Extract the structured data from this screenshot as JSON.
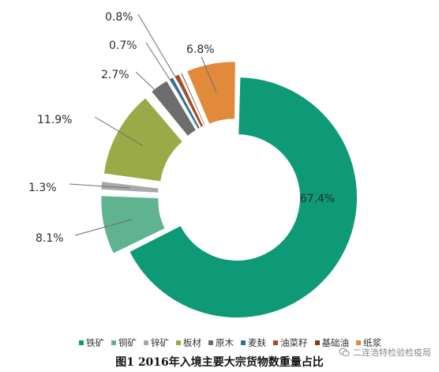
{
  "chart_data": {
    "type": "donut",
    "title": "",
    "categories": [
      "铁矿",
      "铜矿",
      "锌矿",
      "板材",
      "原木",
      "麦麸",
      "油菜籽",
      "基础油",
      "纸浆"
    ],
    "values": [
      67.4,
      8.1,
      1.3,
      11.9,
      2.7,
      0.7,
      0.8,
      0,
      6.8
    ],
    "labels": [
      "67.4%",
      "8.1%",
      "1.3%",
      "11.9%",
      "2.7%",
      "0.7%",
      "0.8%",
      "",
      "6.8%"
    ],
    "colors": [
      "#0f9a77",
      "#5fb38f",
      "#a9a9a9",
      "#9aaa47",
      "#6d6d6d",
      "#2f6f9f",
      "#a84a1e",
      "#8a3a12",
      "#e08a3a"
    ],
    "exploded": [
      false,
      true,
      true,
      true,
      true,
      true,
      true,
      true,
      true
    ],
    "legend_position": "bottom"
  },
  "caption": "图1 2016年入境主要大宗货物数重量占比",
  "watermark": "二连浩特检验检疫局"
}
